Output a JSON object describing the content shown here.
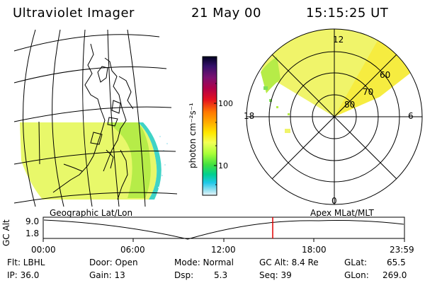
{
  "header": {
    "instrument": "Ultraviolet Imager",
    "date": "21 May 00",
    "time": "15:15:25 UT"
  },
  "colorbar": {
    "unit": "photon cm⁻²s⁻¹",
    "ticks": [
      "100",
      "10"
    ],
    "colors": [
      "#000020",
      "#35106a",
      "#7a1070",
      "#b00048",
      "#e41020",
      "#ff7800",
      "#ffb000",
      "#ffe800",
      "#f2ff55",
      "#a8ff38",
      "#40e040",
      "#00d090",
      "#20c8e8",
      "#90e0f0",
      "#e8f4f8"
    ]
  },
  "polar": {
    "mlt_labels": {
      "top": "12",
      "left": "18",
      "right": "6",
      "bottom": "0"
    },
    "lat_labels": [
      "60",
      "70",
      "80"
    ]
  },
  "timeline": {
    "left_title": "Geographic Lat/Lon",
    "right_title": "Apex MLat/MLT",
    "y_axis_label": "GC Alt",
    "y_ticks": [
      "9.0",
      "1.8"
    ],
    "x_ticks": [
      "00:00",
      "06:00",
      "12:00",
      "18:00",
      "23:59"
    ]
  },
  "footer": {
    "row1": {
      "filter": "Flt: LBHL",
      "door": "Door: Open",
      "mode": "Mode: Normal",
      "gc_alt": "GC Alt: 8.4 Re",
      "glat_label": "GLat:",
      "glat_value": "65.5"
    },
    "row2": {
      "ip": "IP: 36.0",
      "gain": "Gain: 13",
      "dsp_label": "Dsp:",
      "dsp_value": "5.3",
      "seq": "Seq: 39",
      "glon_label": "GLon:",
      "glon_value": "269.0"
    }
  }
}
